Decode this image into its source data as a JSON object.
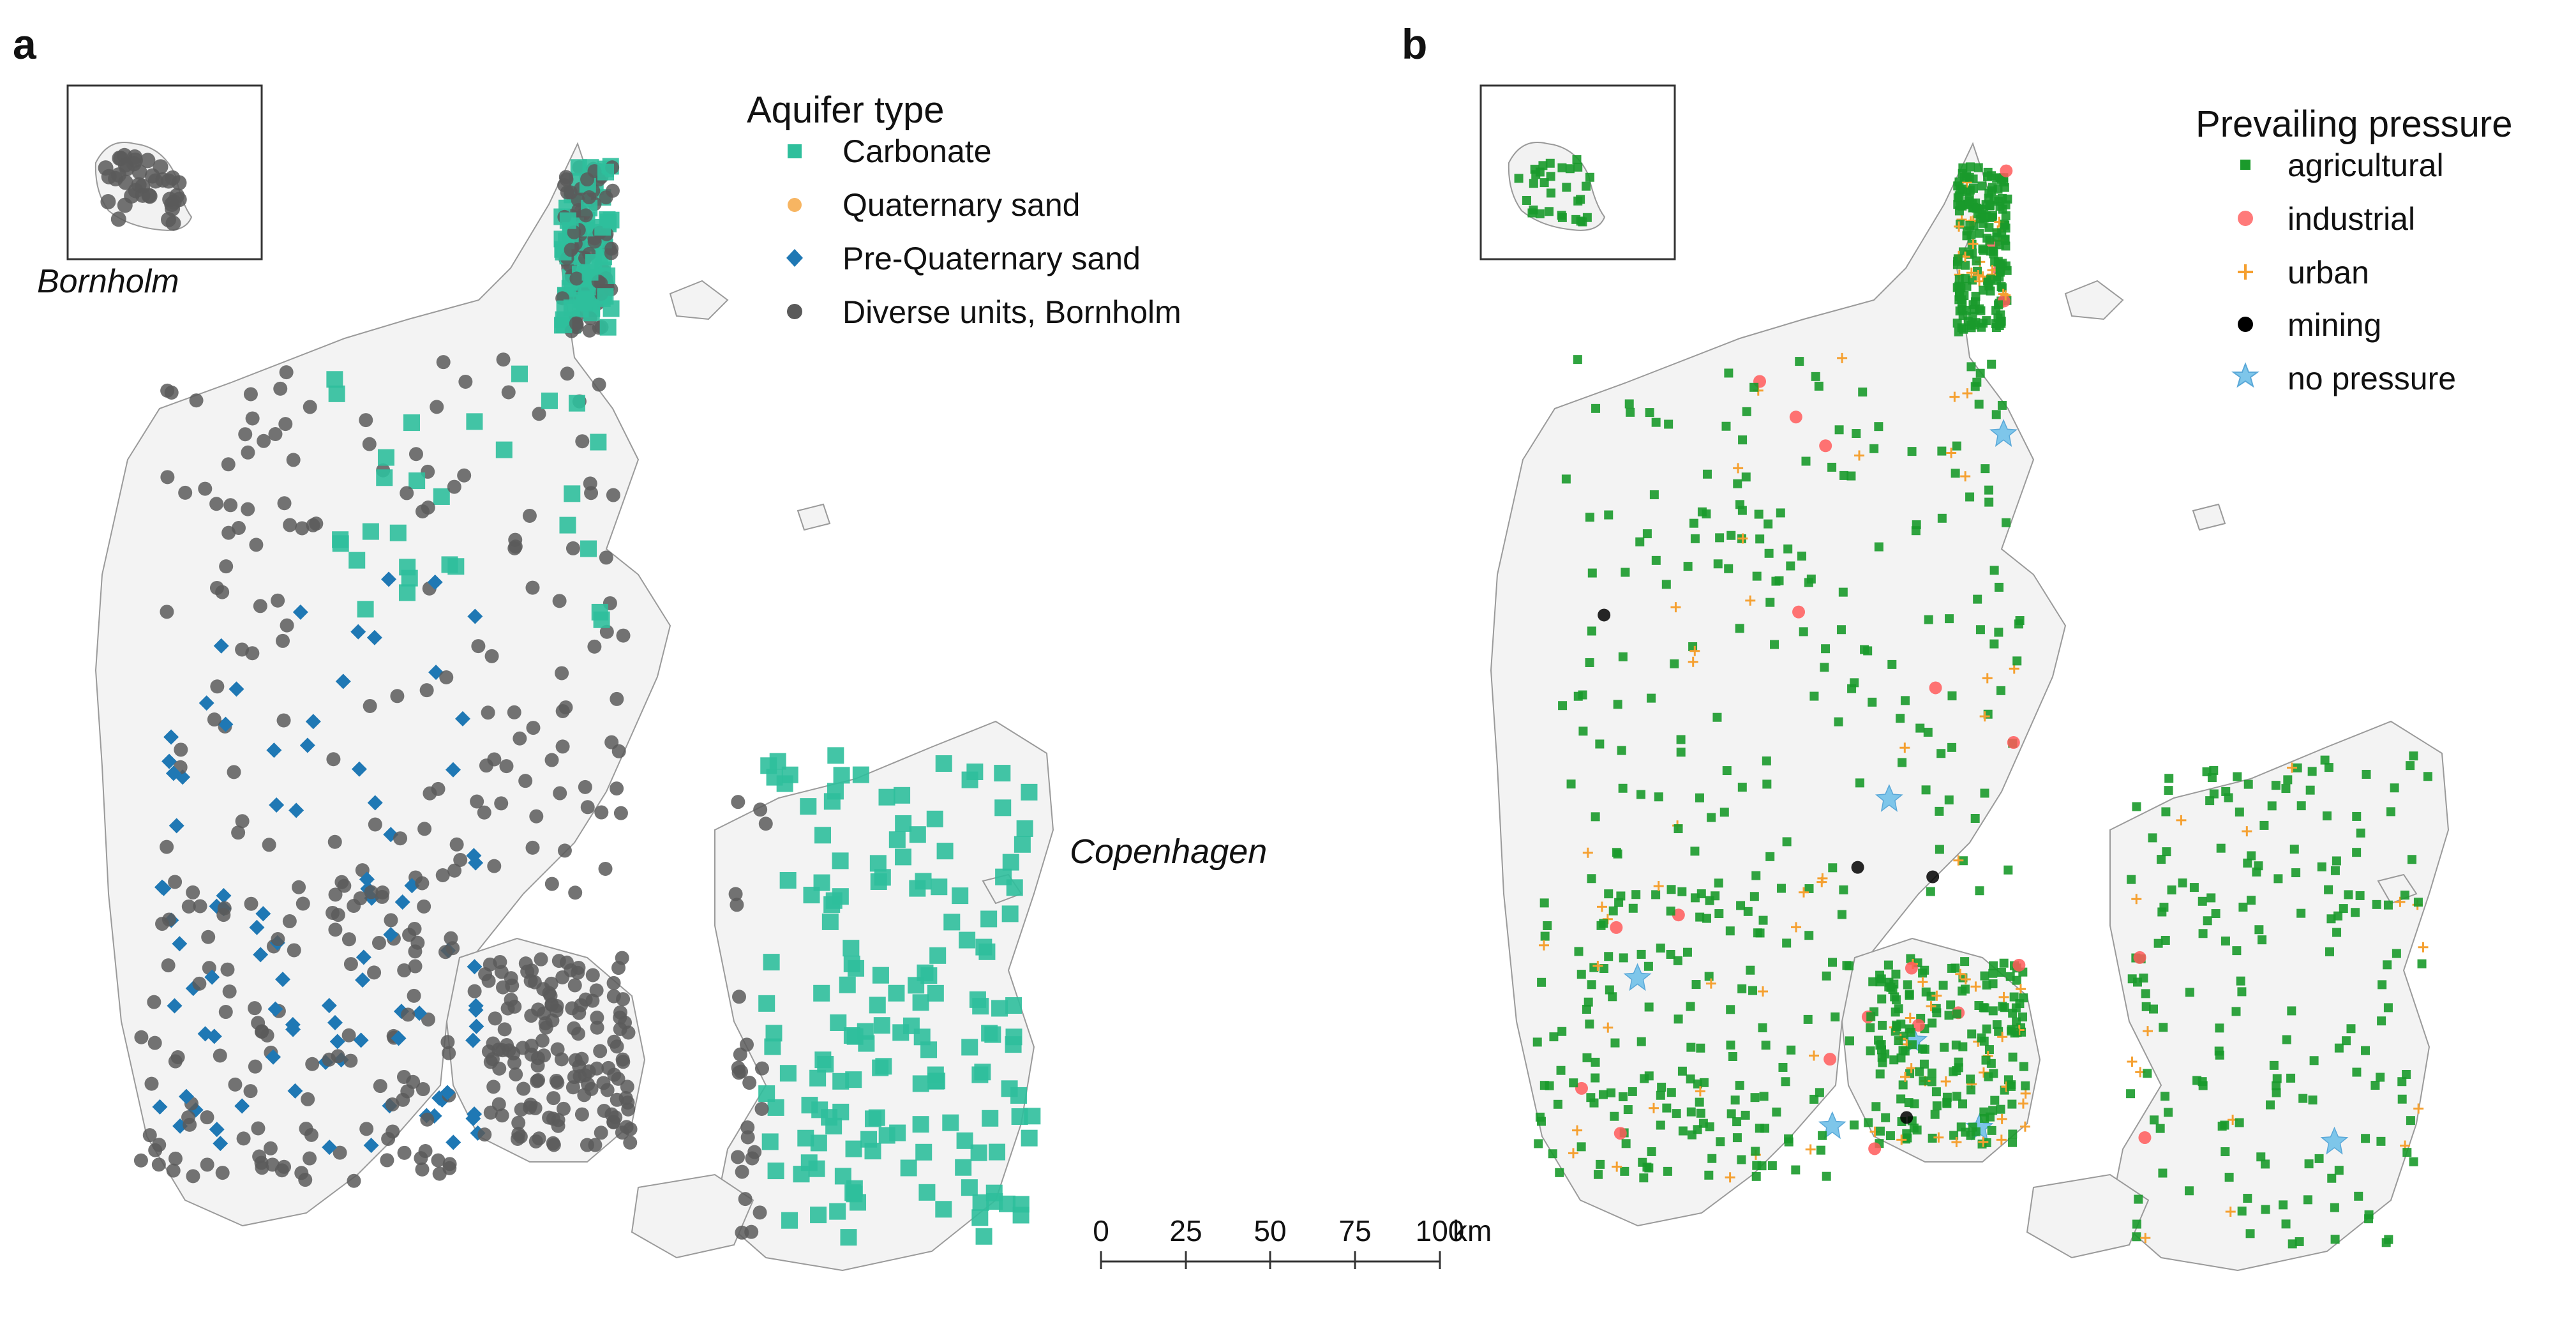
{
  "panels": [
    {
      "letter": "a",
      "legend": {
        "title": "Aquifer type",
        "items": [
          {
            "label": "Carbonate",
            "shape": "square",
            "color": "#2fbf9c"
          },
          {
            "label": "Quaternary sand",
            "shape": "circle",
            "color": "#f7b562"
          },
          {
            "label": "Pre-Quaternary sand",
            "shape": "diamond",
            "color": "#1f78b4"
          },
          {
            "label": "Diverse units, Bornholm",
            "shape": "circle",
            "color": "#5a5a5a"
          }
        ]
      },
      "inset_label": "Bornholm",
      "city_label": "Copenhagen"
    },
    {
      "letter": "b",
      "legend": {
        "title": "Prevailing pressure",
        "items": [
          {
            "label": "agricultural",
            "shape": "square",
            "color": "#1a9a2b"
          },
          {
            "label": "industrial",
            "shape": "circle",
            "color": "#ff5a5a"
          },
          {
            "label": "urban",
            "shape": "plus",
            "color": "#f5a030"
          },
          {
            "label": "mining",
            "shape": "circle",
            "color": "#000000"
          },
          {
            "label": "no pressure",
            "shape": "star",
            "color": "#7ec6ea"
          }
        ]
      }
    }
  ],
  "scale_bar": {
    "ticks": [
      "0",
      "25",
      "50",
      "75",
      "100"
    ],
    "unit": "km"
  }
}
